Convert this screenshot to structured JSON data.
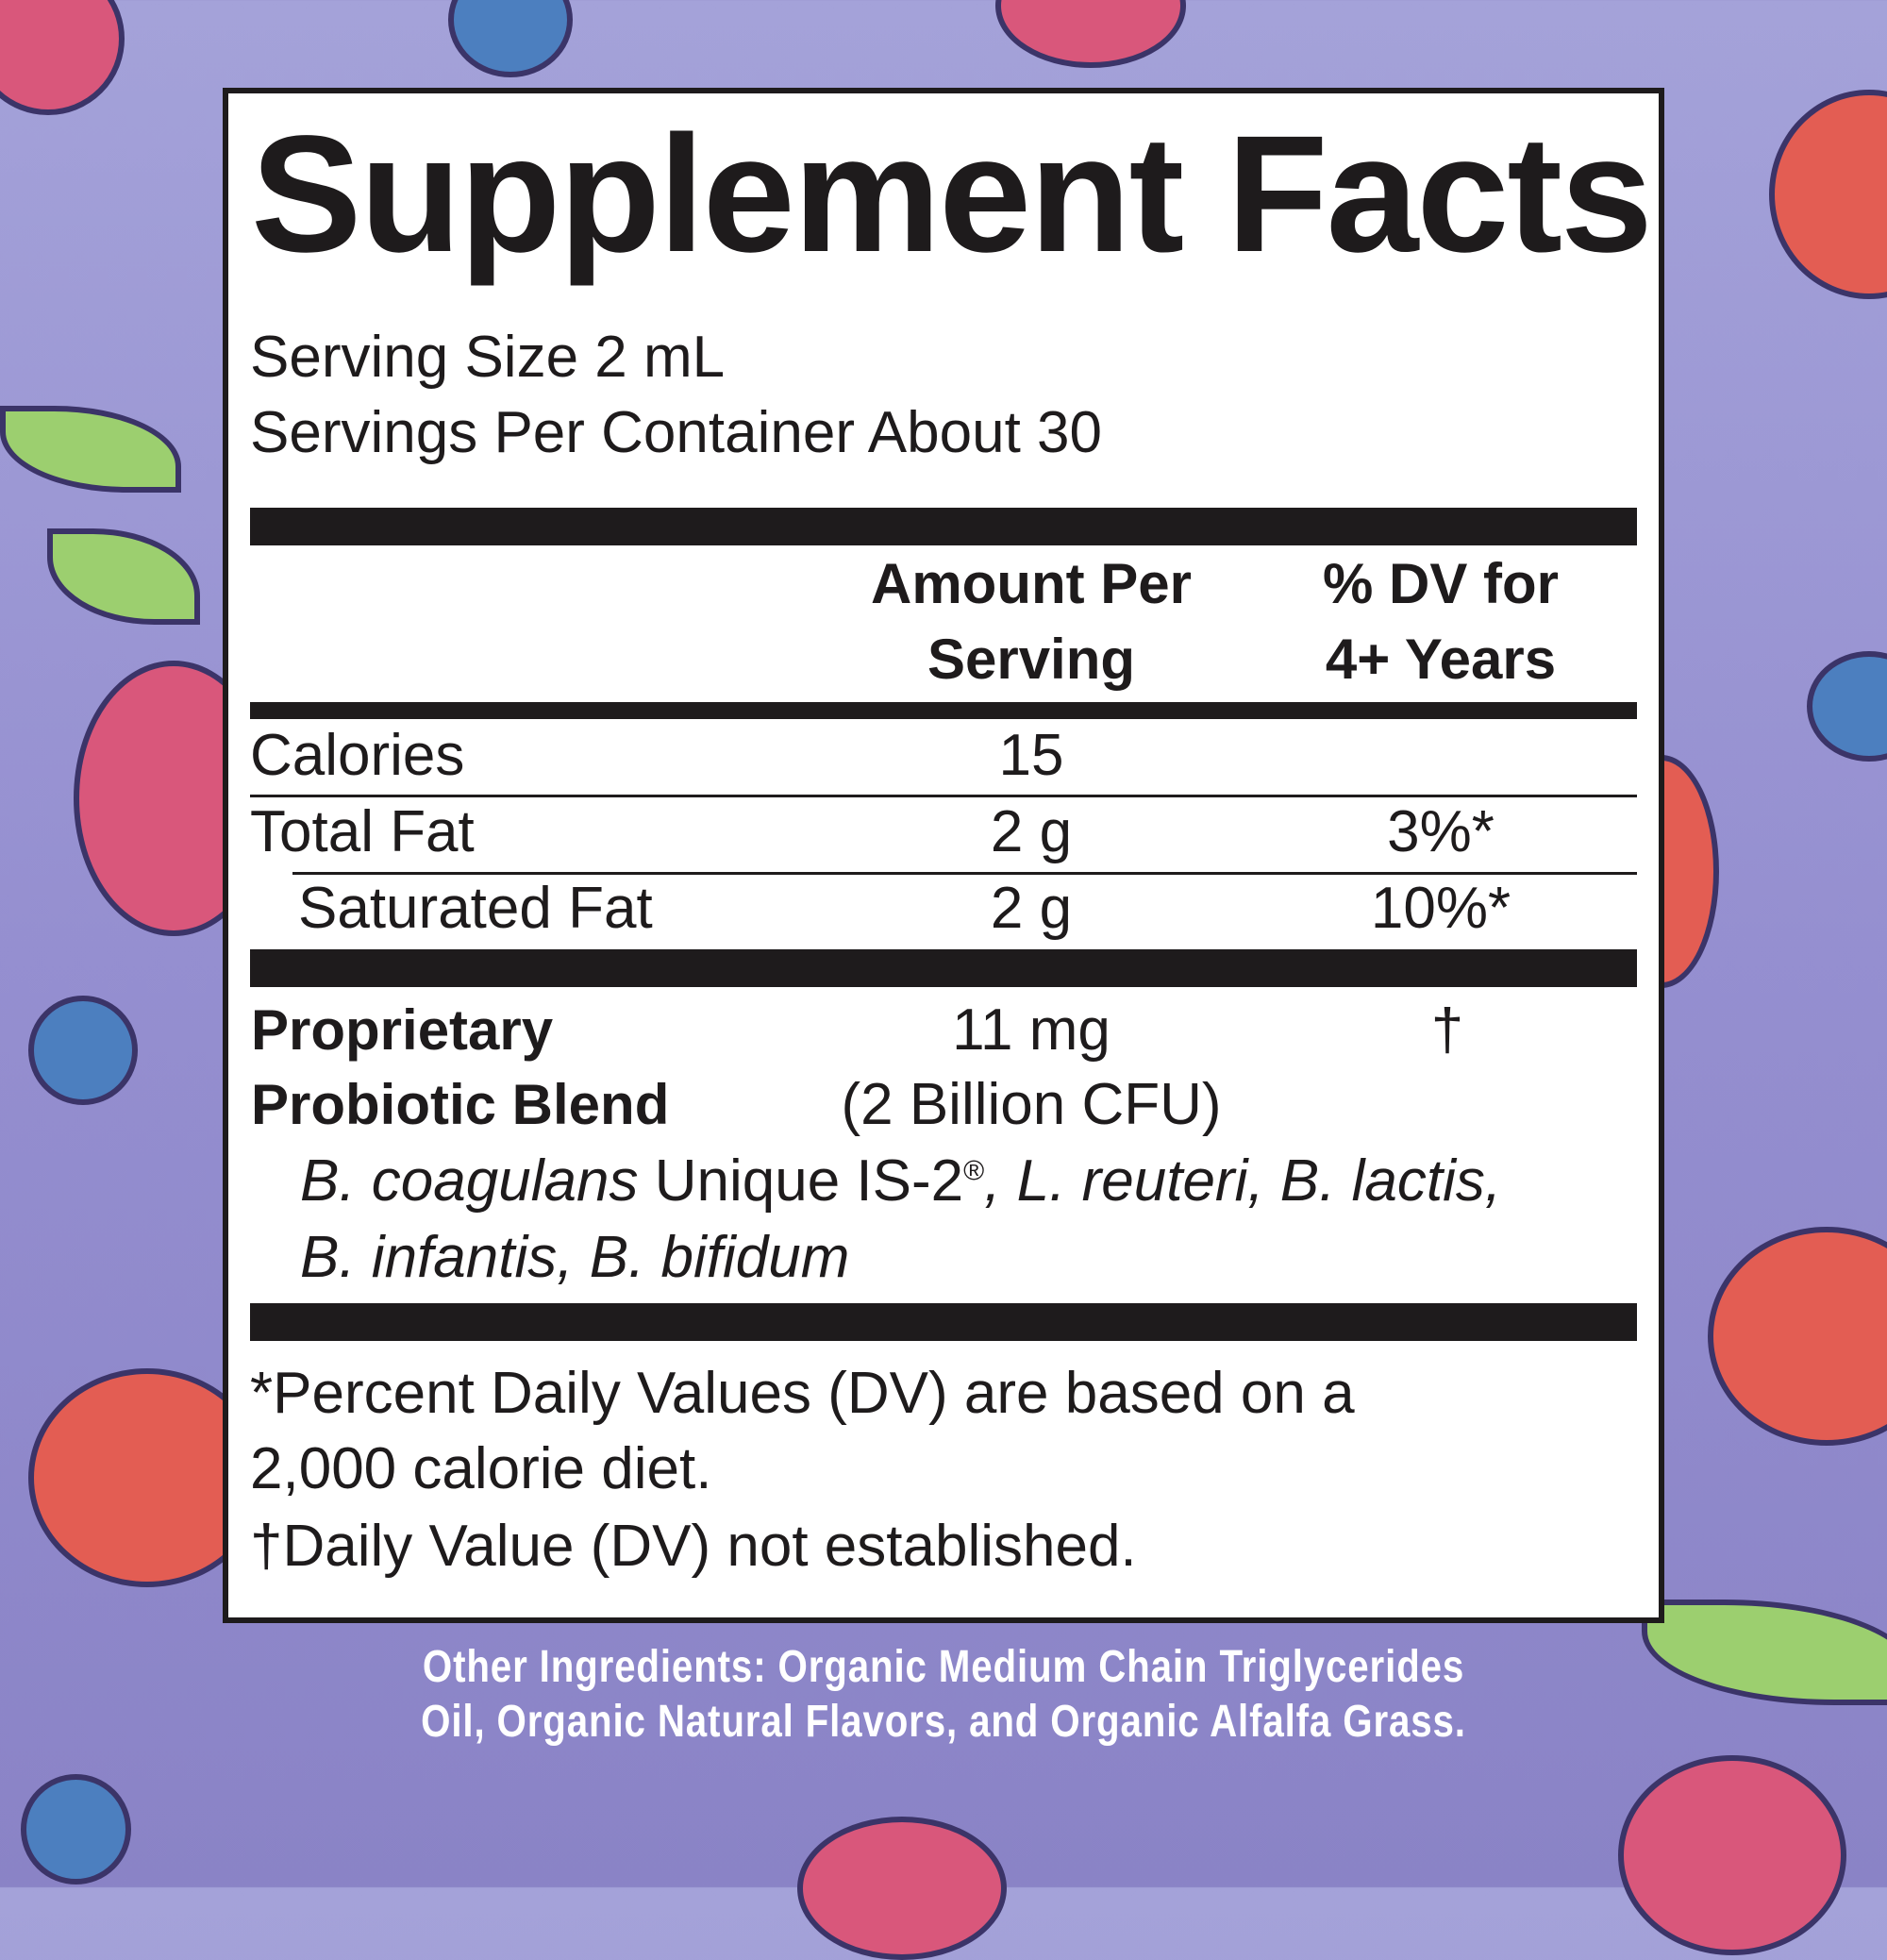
{
  "title": "Supplement Facts",
  "serving_size": "Serving Size 2 mL",
  "servings_per_container": "Servings Per Container About 30",
  "header": {
    "amount_line1": "Amount Per",
    "amount_line2": "Serving",
    "dv_line1": "% DV for",
    "dv_line2": "4+ Years"
  },
  "rows": [
    {
      "name": "Calories",
      "amount": "15",
      "dv": ""
    },
    {
      "name": "Total Fat",
      "amount": "2 g",
      "dv": "3%*"
    },
    {
      "name": "Saturated Fat",
      "amount": "2 g",
      "dv": "10%*"
    }
  ],
  "blend": {
    "name_line1": "Proprietary",
    "name_line2": "Probiotic Blend",
    "amount_line1": "11 mg",
    "amount_line2": "(2 Billion CFU)",
    "dv": "†",
    "strains": {
      "s1": "B. coagulans",
      "s1_suffix": " Unique IS-2",
      "registered": "®",
      "s2": ", L. reuteri, B. lactis,",
      "s3": "B. infantis, B. bifidum"
    }
  },
  "footnotes": {
    "line1": "*Percent Daily Values (DV) are based on a",
    "line2": "2,000 calorie diet.",
    "line3": "†Daily Value (DV) not established."
  },
  "other_ingredients": {
    "line1": "Other Ingredients: Organic Medium Chain Triglycerides",
    "line2": "Oil, Organic Natural Flavors, and Organic Alfalfa Grass."
  },
  "colors": {
    "background": "#9a95d3",
    "ink": "#1e1b1c",
    "other_text": "#ffffff"
  }
}
